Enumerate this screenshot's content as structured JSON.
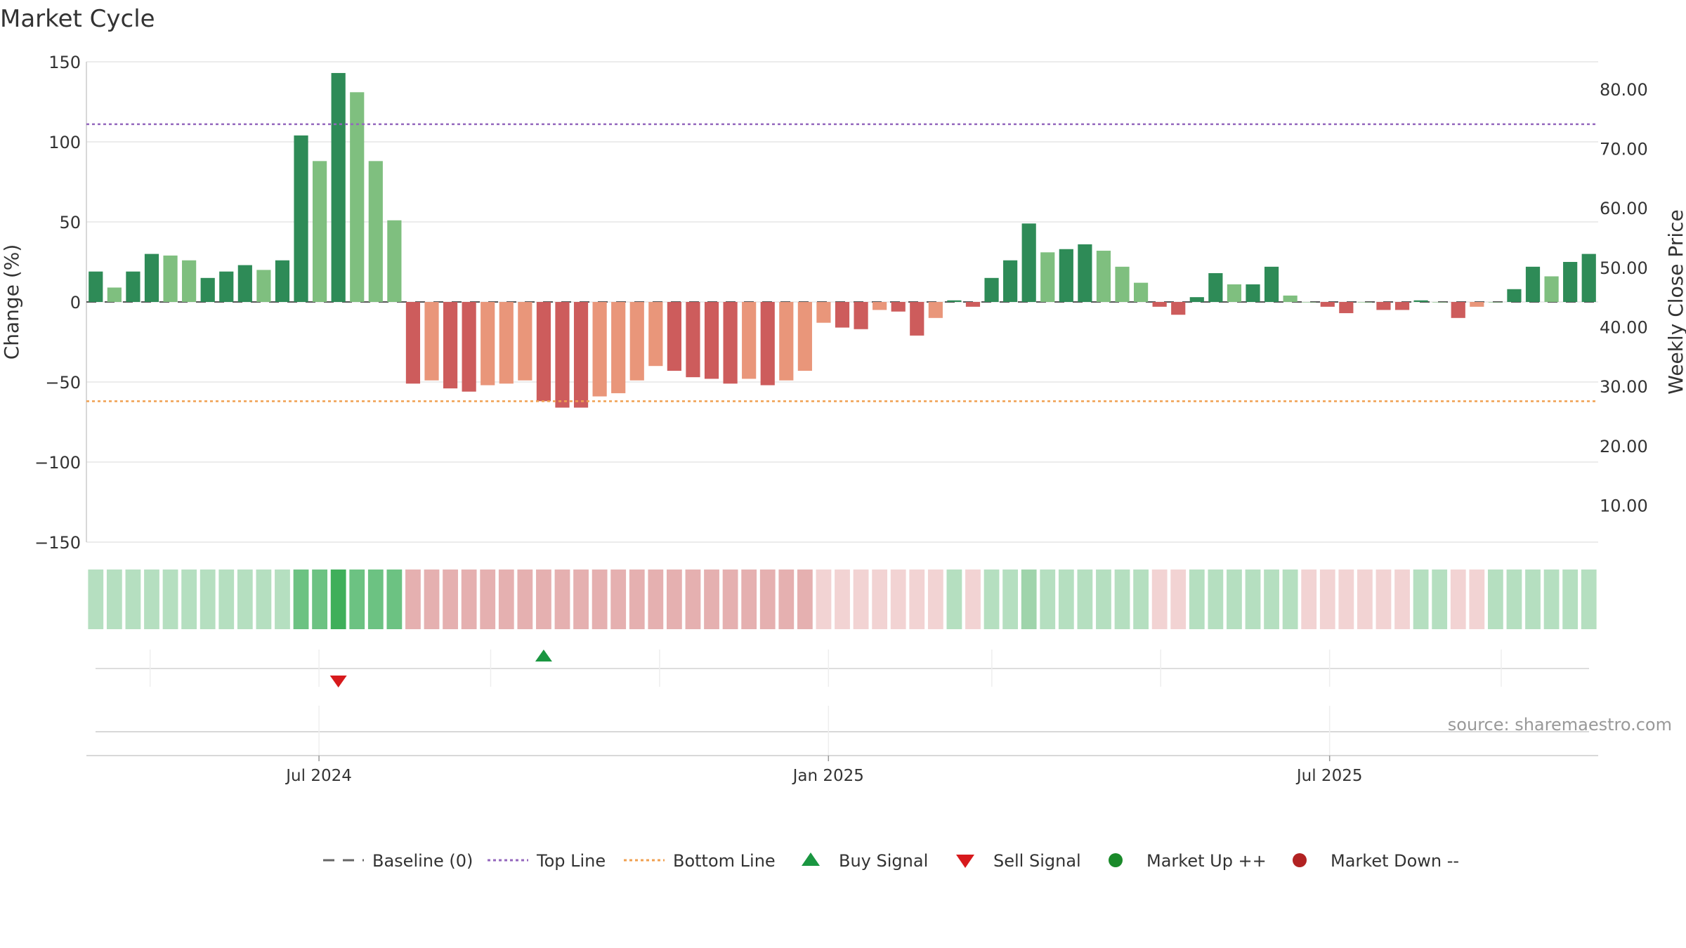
{
  "chart_data": {
    "type": "bar",
    "title": "Market Cycle",
    "ylabel": "Change (%)",
    "y2label": "Weekly Close Price",
    "source": "source: sharemaestro.com",
    "ylim": [
      -150,
      150
    ],
    "y2lim": [
      3.8,
      84.6
    ],
    "yticks": [
      150,
      100,
      50,
      0,
      -50,
      -100,
      -150
    ],
    "ytick_labels": [
      "150",
      "100",
      "50",
      "0",
      "−50",
      "−100",
      "−150"
    ],
    "y2ticks": [
      80,
      70,
      60,
      50,
      40,
      30,
      20,
      10
    ],
    "y2tick_labels": [
      "80.00",
      "70.00",
      "60.00",
      "50.00",
      "40.00",
      "30.00",
      "20.00",
      "10.00"
    ],
    "x_start": "2024-04-08",
    "x_end": "2025-10-06",
    "xticks": [
      "2024-07-01",
      "2025-01-01",
      "2025-07-01"
    ],
    "xtick_labels": [
      "Jul 2024",
      "Jan 2025",
      "Jul 2025"
    ],
    "top_line": 111,
    "bottom_line": -62,
    "grid": true,
    "legend_position": "bottom-center",
    "values": [
      19,
      9,
      19,
      30,
      29,
      26,
      15,
      19,
      23,
      20,
      26,
      104,
      88,
      143,
      131,
      88,
      51,
      -51,
      -49,
      -54,
      -56,
      -52,
      -51,
      -49,
      -62,
      -66,
      -66,
      -59,
      -57,
      -49,
      -40,
      -43,
      -47,
      -48,
      -51,
      -48,
      -52,
      -49,
      -43,
      -13,
      -16,
      -17,
      -5,
      -6,
      -21,
      -10,
      1,
      -3,
      15,
      26,
      49,
      31,
      33,
      36,
      32,
      22,
      12,
      -3,
      -8,
      3,
      18,
      11,
      11,
      22,
      4,
      0,
      -3,
      -7,
      0,
      -5,
      -5,
      1,
      0,
      -10,
      -3,
      0,
      8,
      22,
      16,
      25,
      30
    ],
    "bar_tone": [
      "d",
      "l",
      "d",
      "d",
      "l",
      "l",
      "d",
      "d",
      "d",
      "l",
      "d",
      "d",
      "l",
      "d",
      "l",
      "l",
      "l",
      "d",
      "l",
      "d",
      "d",
      "l",
      "l",
      "l",
      "d",
      "d",
      "d",
      "l",
      "l",
      "l",
      "l",
      "d",
      "d",
      "d",
      "d",
      "l",
      "d",
      "l",
      "l",
      "l",
      "d",
      "d",
      "l",
      "d",
      "d",
      "l",
      "d",
      "d",
      "d",
      "d",
      "d",
      "l",
      "d",
      "d",
      "l",
      "l",
      "l",
      "d",
      "d",
      "d",
      "d",
      "l",
      "d",
      "d",
      "l",
      "l",
      "d",
      "d",
      "l",
      "d",
      "d",
      "d",
      "l",
      "d",
      "l",
      "l",
      "d",
      "d",
      "l",
      "d",
      "d"
    ],
    "cycle_strip": [
      "g1",
      "g1",
      "g1",
      "g1",
      "g1",
      "g1",
      "g1",
      "g1",
      "g1",
      "g1",
      "g1",
      "g2",
      "g2",
      "g3",
      "g2",
      "g2",
      "g2",
      "r2",
      "r2",
      "r2",
      "r2",
      "r2",
      "r2",
      "r2",
      "r2",
      "r2",
      "r2",
      "r2",
      "r2",
      "r2",
      "r2",
      "r2",
      "r2",
      "r2",
      "r2",
      "r2",
      "r2",
      "r2",
      "r2",
      "r1",
      "r1",
      "r1",
      "r1",
      "r1",
      "r1",
      "r1",
      "g1",
      "r1",
      "g1",
      "g1",
      "g1b",
      "g1",
      "g1",
      "g1",
      "g1",
      "g1",
      "g1",
      "r1",
      "r1",
      "g1",
      "g1",
      "g1",
      "g1",
      "g1",
      "g1",
      "r1",
      "r1",
      "r1",
      "r1",
      "r1",
      "r1",
      "g1",
      "g1",
      "r1",
      "r1",
      "g1",
      "g1",
      "g1",
      "g1",
      "g1",
      "g1"
    ],
    "buy_signals": [
      24
    ],
    "sell_signals": [
      13
    ],
    "colors": {
      "up_dark": "#2e8b57",
      "up_light": "#7fbf7f",
      "down_dark": "#cd5c5c",
      "down_light": "#e9967a",
      "top_line": "#9467bd",
      "bottom_line": "#f0a050",
      "buy": "#1a9641",
      "sell": "#d7191c",
      "market_up": "#1a8a2a",
      "market_down": "#b22222",
      "strip": {
        "g1": "#b5dfc0",
        "g1b": "#9fd4ab",
        "g2": "#6cc282",
        "g3": "#3faf5a",
        "r1": "#f2d3d3",
        "r2": "#e5b0b0"
      }
    },
    "legend": [
      {
        "label": "Baseline (0)",
        "symbol": "dash-gray"
      },
      {
        "label": "Top Line",
        "symbol": "dot-purple"
      },
      {
        "label": "Bottom Line",
        "symbol": "dot-orange"
      },
      {
        "label": "Buy Signal",
        "symbol": "triangle-up-green"
      },
      {
        "label": "Sell Signal",
        "symbol": "triangle-down-red"
      },
      {
        "label": "Market Up ++",
        "symbol": "circle-green"
      },
      {
        "label": "Market Down --",
        "symbol": "circle-darkred"
      }
    ]
  }
}
